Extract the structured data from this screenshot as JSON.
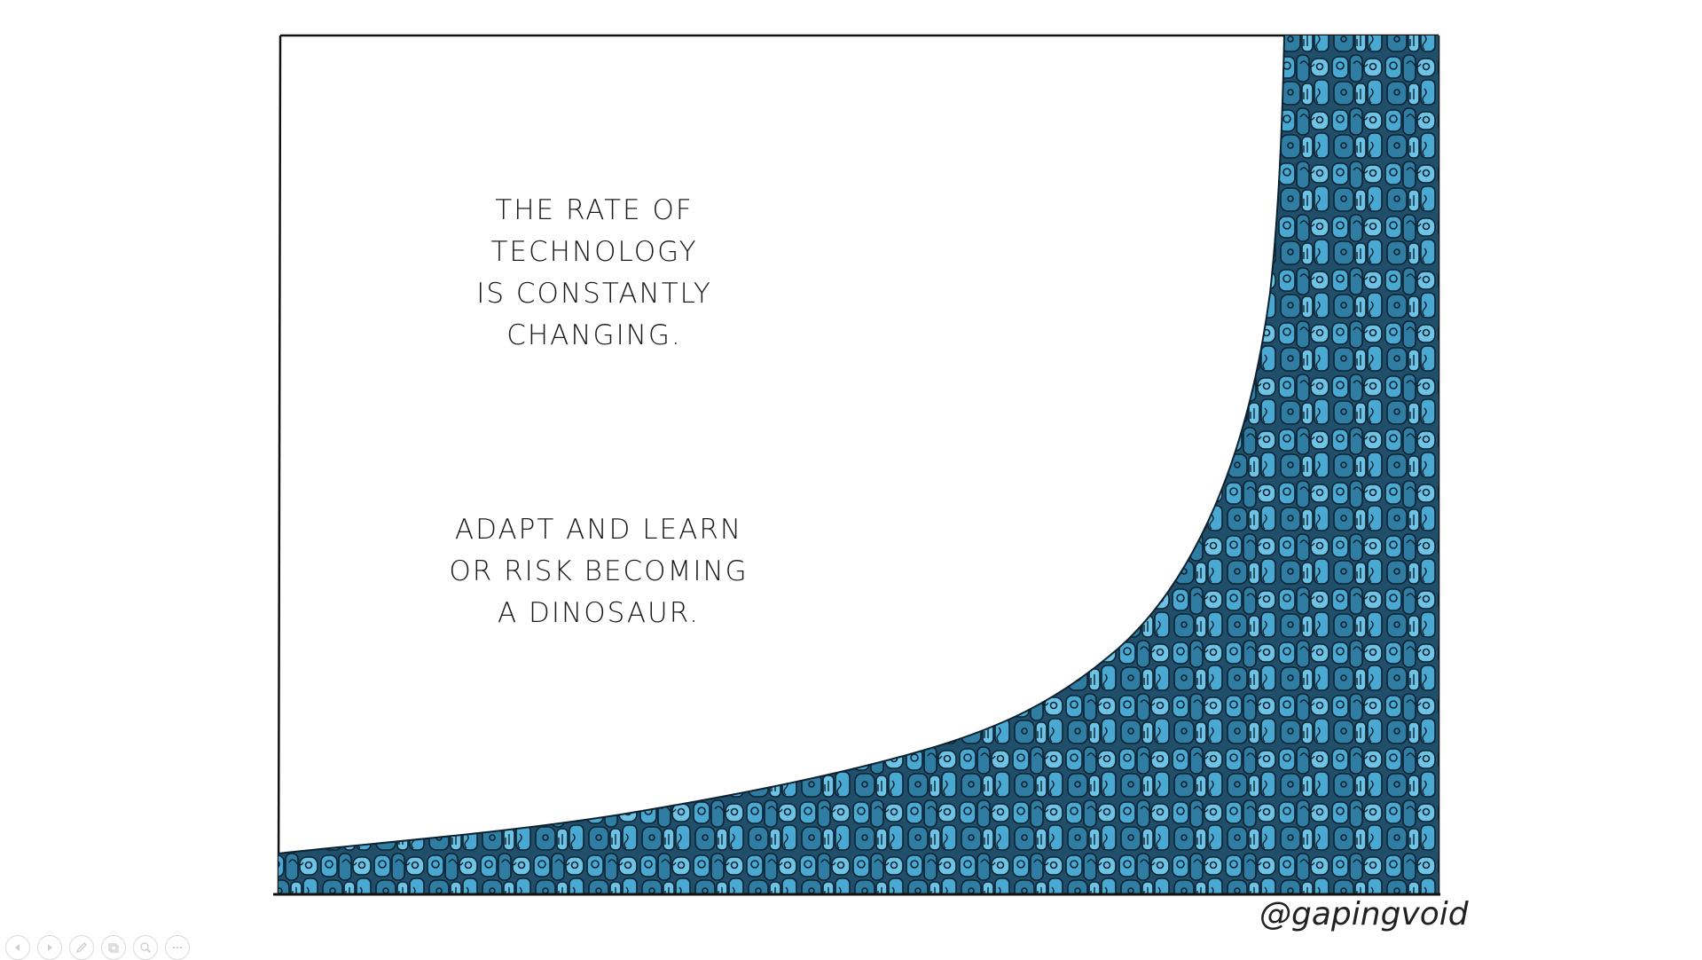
{
  "caption_top": {
    "lines": [
      "THE RATE OF",
      "TECHNOLOGY",
      "IS CONSTANTLY",
      "CHANGING."
    ]
  },
  "caption_bottom": {
    "lines": [
      "ADAPT AND LEARN",
      "OR RISK BECOMING",
      "A DINOSAUR."
    ]
  },
  "signature": "@gapingvoid",
  "colors": {
    "background": "#ffffff",
    "frame": "#111111",
    "crowd_dark": "#1f4f6b",
    "crowd_mid": "#2f7da3",
    "crowd_light": "#4aa9d3",
    "crowd_pale": "#6cc3e6"
  },
  "controls": [
    {
      "name": "previous-slide-button",
      "icon": "arrow-left-icon"
    },
    {
      "name": "next-slide-button",
      "icon": "arrow-right-icon"
    },
    {
      "name": "pen-button",
      "icon": "pen-icon"
    },
    {
      "name": "slides-button",
      "icon": "slides-icon"
    },
    {
      "name": "zoom-button",
      "icon": "magnifier-icon"
    },
    {
      "name": "more-options-button",
      "icon": "ellipsis-icon"
    }
  ]
}
